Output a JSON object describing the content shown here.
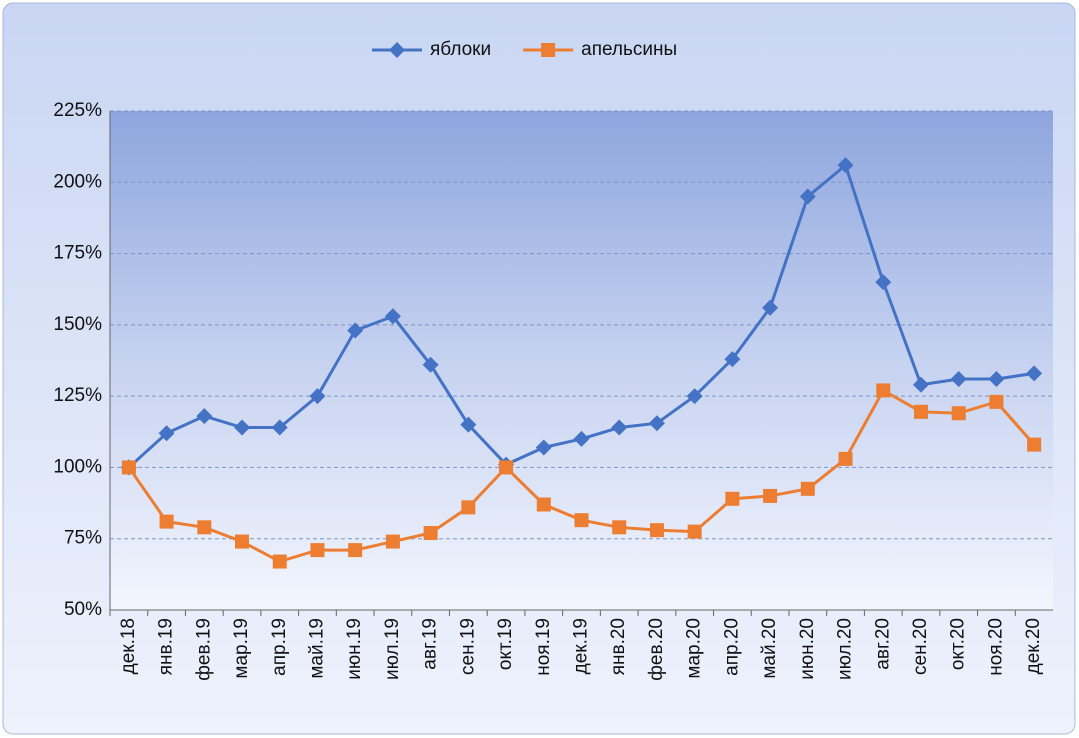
{
  "chart_data": {
    "type": "line",
    "categories": [
      "дек.18",
      "янв.19",
      "фев.19",
      "мар.19",
      "апр.19",
      "май.19",
      "июн.19",
      "июл.19",
      "авг.19",
      "сен.19",
      "окт.19",
      "ноя.19",
      "дек.19",
      "янв.20",
      "фев.20",
      "мар.20",
      "апр.20",
      "май.20",
      "июн.20",
      "июл.20",
      "авг.20",
      "сен.20",
      "окт.20",
      "ноя.20",
      "дек.20"
    ],
    "series": [
      {
        "name": "яблоки",
        "color": "#4472c4",
        "marker": "diamond",
        "values": [
          100,
          112,
          118,
          114,
          114,
          125,
          148,
          153,
          136,
          115,
          101,
          107,
          110,
          114,
          115.5,
          125,
          138,
          156,
          195,
          206,
          165,
          129,
          131,
          131,
          133
        ]
      },
      {
        "name": "апельсины",
        "color": "#ed7d31",
        "marker": "square",
        "values": [
          100,
          81,
          79,
          74,
          67,
          71,
          71,
          74,
          77,
          86,
          100,
          87,
          81.5,
          79,
          78,
          77.5,
          89,
          90,
          92.5,
          103,
          127,
          119.5,
          119,
          123,
          108
        ]
      }
    ],
    "ylim": [
      50,
      225
    ],
    "yticks": [
      {
        "value": 50,
        "label": "50%"
      },
      {
        "value": 75,
        "label": "75%"
      },
      {
        "value": 100,
        "label": "100%"
      },
      {
        "value": 125,
        "label": "125%"
      },
      {
        "value": 150,
        "label": "150%"
      },
      {
        "value": 175,
        "label": "175%"
      },
      {
        "value": 200,
        "label": "200%"
      },
      {
        "value": 225,
        "label": "225%"
      }
    ],
    "grid": true,
    "legend": "top"
  }
}
